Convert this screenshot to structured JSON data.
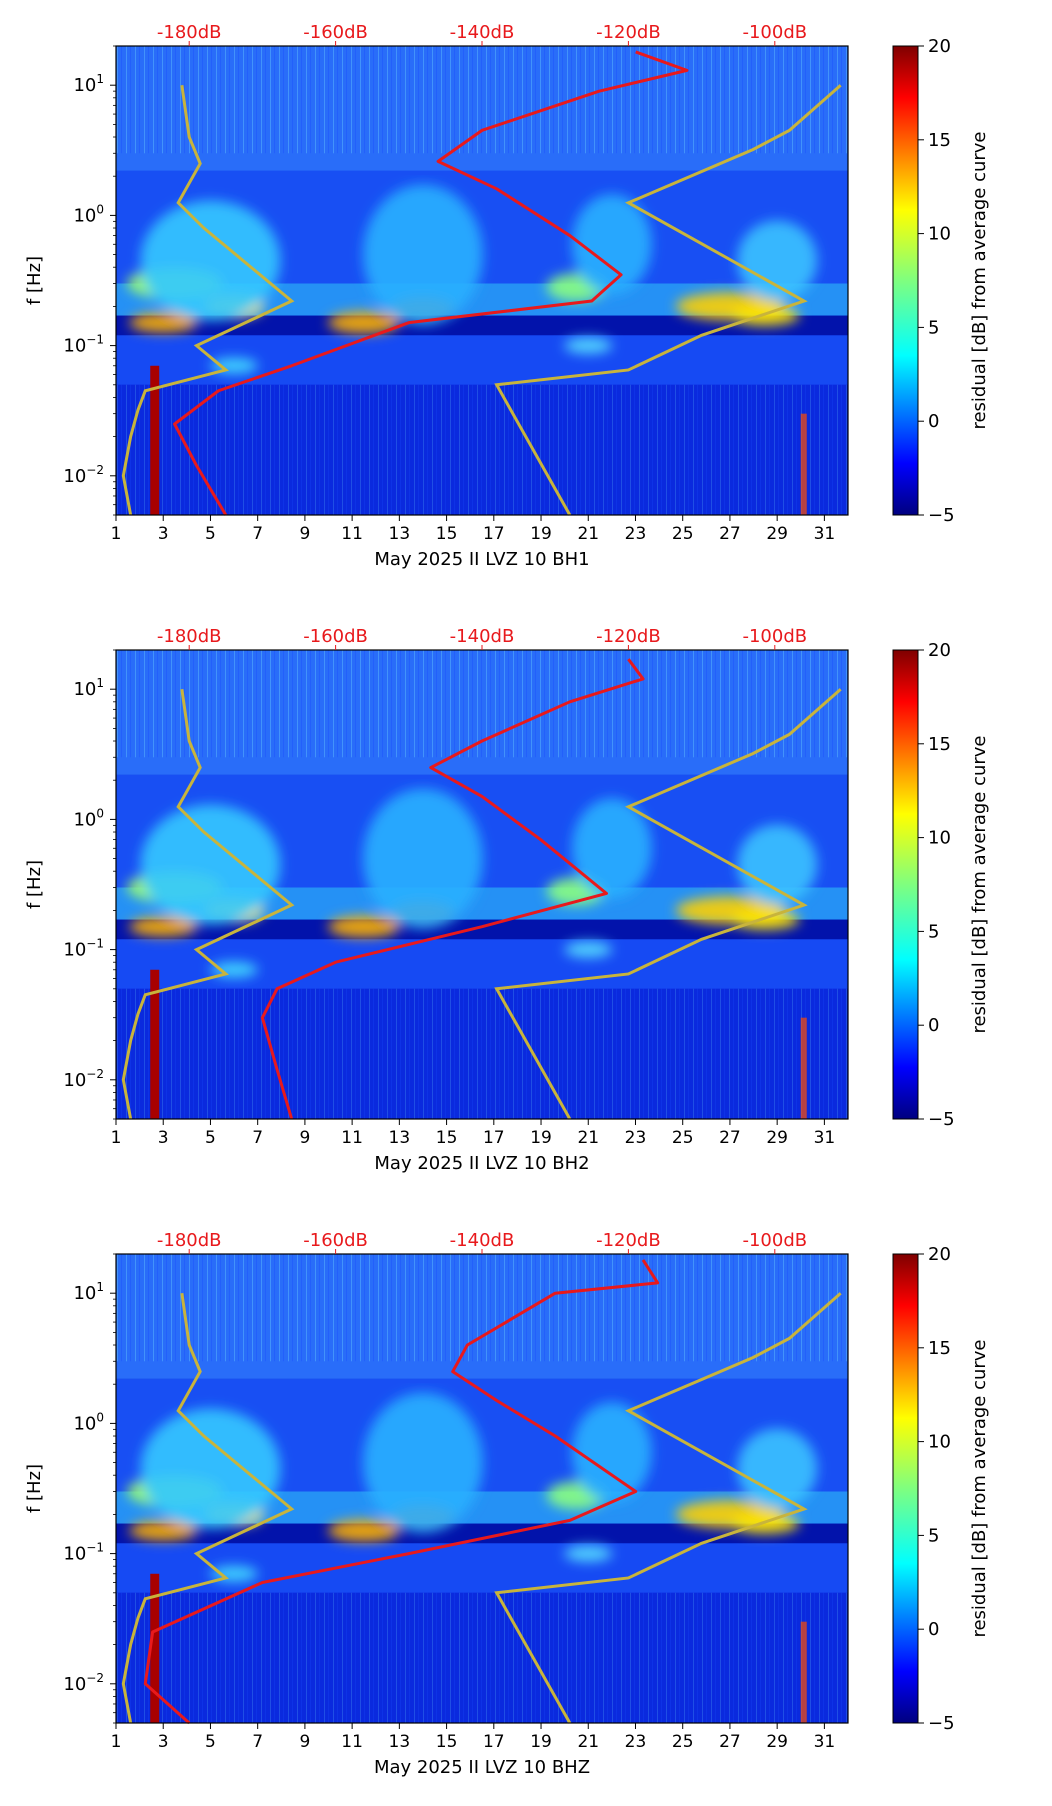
{
  "colors": {
    "psd_curve": "#e8191c",
    "nlnm_nhnm": "#c8b43c",
    "top_axis_text": "#e8191c",
    "axis": "#000000"
  },
  "chart_data": [
    {
      "type": "heatmap",
      "title": "",
      "xlabel": "May 2025 II LVZ 10 BH1",
      "ylabel": "f [Hz]",
      "x_ticks": [
        "1",
        "3",
        "5",
        "7",
        "9",
        "11",
        "13",
        "15",
        "17",
        "19",
        "21",
        "23",
        "25",
        "27",
        "29",
        "31"
      ],
      "x_range": [
        1,
        32
      ],
      "y_range_hz": [
        0.005,
        20
      ],
      "y_scale": "log",
      "y_ticks": [
        {
          "value": 10,
          "base": "10",
          "exp": "1"
        },
        {
          "value": 1,
          "base": "10",
          "exp": "0"
        },
        {
          "value": 0.1,
          "base": "10",
          "exp": "−1"
        },
        {
          "value": 0.01,
          "base": "10",
          "exp": "−2"
        }
      ],
      "top_axis": {
        "labels": [
          "-180dB",
          "-160dB",
          "-140dB",
          "-120dB",
          "-100dB"
        ],
        "values_db": [
          -180,
          -160,
          -140,
          -120,
          -100
        ],
        "range_db": [
          -190,
          -90
        ]
      },
      "colorbar": {
        "label": "residual [dB] from average curve",
        "range": [
          -5,
          20
        ],
        "ticks": [
          "20",
          "15",
          "10",
          "5",
          "0",
          "−5"
        ],
        "tick_values": [
          20,
          15,
          10,
          5,
          0,
          -5
        ]
      },
      "model_curves_db": {
        "low_noise": [
          [
            -181,
            10
          ],
          [
            -180,
            4
          ],
          [
            -178.5,
            2.5
          ],
          [
            -181.5,
            1.25
          ],
          [
            -178,
            0.8
          ],
          [
            -166,
            0.22
          ],
          [
            -179,
            0.1
          ],
          [
            -175,
            0.065
          ],
          [
            -186,
            0.045
          ],
          [
            -187,
            0.032
          ],
          [
            -188,
            0.02
          ],
          [
            -189,
            0.01
          ],
          [
            -188,
            0.005
          ]
        ],
        "high_noise": [
          [
            -91,
            10
          ],
          [
            -98,
            4.5
          ],
          [
            -103,
            3.2
          ],
          [
            -120,
            1.25
          ],
          [
            -96,
            0.22
          ],
          [
            -110,
            0.12
          ],
          [
            -120,
            0.065
          ],
          [
            -138,
            0.05
          ],
          [
            -128,
            0.005
          ]
        ]
      },
      "psd_curve_db": [
        [
          -119,
          18
        ],
        [
          -112,
          13
        ],
        [
          -124,
          9
        ],
        [
          -140,
          4.5
        ],
        [
          -146,
          2.6
        ],
        [
          -138,
          1.6
        ],
        [
          -128,
          0.7
        ],
        [
          -121,
          0.35
        ],
        [
          -125,
          0.22
        ],
        [
          -150,
          0.15
        ],
        [
          -166,
          0.07
        ],
        [
          -176,
          0.045
        ],
        [
          -182,
          0.025
        ],
        [
          -179,
          0.012
        ],
        [
          -175,
          0.005
        ]
      ]
    },
    {
      "type": "heatmap",
      "title": "",
      "xlabel": "May 2025 II LVZ 10 BH2",
      "ylabel": "f [Hz]",
      "x_ticks": [
        "1",
        "3",
        "5",
        "7",
        "9",
        "11",
        "13",
        "15",
        "17",
        "19",
        "21",
        "23",
        "25",
        "27",
        "29",
        "31"
      ],
      "x_range": [
        1,
        32
      ],
      "y_range_hz": [
        0.005,
        20
      ],
      "y_scale": "log",
      "y_ticks": [
        {
          "value": 10,
          "base": "10",
          "exp": "1"
        },
        {
          "value": 1,
          "base": "10",
          "exp": "0"
        },
        {
          "value": 0.1,
          "base": "10",
          "exp": "−1"
        },
        {
          "value": 0.01,
          "base": "10",
          "exp": "−2"
        }
      ],
      "top_axis": {
        "labels": [
          "-180dB",
          "-160dB",
          "-140dB",
          "-120dB",
          "-100dB"
        ],
        "values_db": [
          -180,
          -160,
          -140,
          -120,
          -100
        ],
        "range_db": [
          -190,
          -90
        ]
      },
      "colorbar": {
        "label": "residual [dB] from average curve",
        "range": [
          -5,
          20
        ],
        "ticks": [
          "20",
          "15",
          "10",
          "5",
          "0",
          "−5"
        ],
        "tick_values": [
          20,
          15,
          10,
          5,
          0,
          -5
        ]
      },
      "model_curves_db": {
        "low_noise": [
          [
            -181,
            10
          ],
          [
            -180,
            4
          ],
          [
            -178.5,
            2.5
          ],
          [
            -181.5,
            1.25
          ],
          [
            -178,
            0.8
          ],
          [
            -166,
            0.22
          ],
          [
            -179,
            0.1
          ],
          [
            -175,
            0.065
          ],
          [
            -186,
            0.045
          ],
          [
            -187,
            0.032
          ],
          [
            -188,
            0.02
          ],
          [
            -189,
            0.01
          ],
          [
            -188,
            0.005
          ]
        ],
        "high_noise": [
          [
            -91,
            10
          ],
          [
            -98,
            4.5
          ],
          [
            -103,
            3.2
          ],
          [
            -120,
            1.25
          ],
          [
            -96,
            0.22
          ],
          [
            -110,
            0.12
          ],
          [
            -120,
            0.065
          ],
          [
            -138,
            0.05
          ],
          [
            -128,
            0.005
          ]
        ]
      },
      "psd_curve_db": [
        [
          -120,
          17
        ],
        [
          -118,
          12
        ],
        [
          -128,
          8
        ],
        [
          -140,
          4
        ],
        [
          -147,
          2.5
        ],
        [
          -140,
          1.5
        ],
        [
          -132,
          0.7
        ],
        [
          -123,
          0.27
        ],
        [
          -140,
          0.15
        ],
        [
          -160,
          0.08
        ],
        [
          -168,
          0.05
        ],
        [
          -170,
          0.03
        ],
        [
          -168,
          0.012
        ],
        [
          -166,
          0.005
        ]
      ]
    },
    {
      "type": "heatmap",
      "title": "",
      "xlabel": "May 2025 II LVZ 10 BHZ",
      "ylabel": "f [Hz]",
      "x_ticks": [
        "1",
        "3",
        "5",
        "7",
        "9",
        "11",
        "13",
        "15",
        "17",
        "19",
        "21",
        "23",
        "25",
        "27",
        "29",
        "31"
      ],
      "x_range": [
        1,
        32
      ],
      "y_range_hz": [
        0.005,
        20
      ],
      "y_scale": "log",
      "y_ticks": [
        {
          "value": 10,
          "base": "10",
          "exp": "1"
        },
        {
          "value": 1,
          "base": "10",
          "exp": "0"
        },
        {
          "value": 0.1,
          "base": "10",
          "exp": "−1"
        },
        {
          "value": 0.01,
          "base": "10",
          "exp": "−2"
        }
      ],
      "top_axis": {
        "labels": [
          "-180dB",
          "-160dB",
          "-140dB",
          "-120dB",
          "-100dB"
        ],
        "values_db": [
          -180,
          -160,
          -140,
          -120,
          -100
        ],
        "range_db": [
          -190,
          -90
        ]
      },
      "colorbar": {
        "label": "residual [dB] from average curve",
        "range": [
          -5,
          20
        ],
        "ticks": [
          "20",
          "15",
          "10",
          "5",
          "0",
          "−5"
        ],
        "tick_values": [
          20,
          15,
          10,
          5,
          0,
          -5
        ]
      },
      "model_curves_db": {
        "low_noise": [
          [
            -181,
            10
          ],
          [
            -180,
            4
          ],
          [
            -178.5,
            2.5
          ],
          [
            -181.5,
            1.25
          ],
          [
            -178,
            0.8
          ],
          [
            -166,
            0.22
          ],
          [
            -179,
            0.1
          ],
          [
            -175,
            0.065
          ],
          [
            -186,
            0.045
          ],
          [
            -187,
            0.032
          ],
          [
            -188,
            0.02
          ],
          [
            -189,
            0.01
          ],
          [
            -188,
            0.005
          ]
        ],
        "high_noise": [
          [
            -91,
            10
          ],
          [
            -98,
            4.5
          ],
          [
            -103,
            3.2
          ],
          [
            -120,
            1.25
          ],
          [
            -96,
            0.22
          ],
          [
            -110,
            0.12
          ],
          [
            -120,
            0.065
          ],
          [
            -138,
            0.05
          ],
          [
            -128,
            0.005
          ]
        ]
      },
      "psd_curve_db": [
        [
          -118,
          18
        ],
        [
          -116,
          12
        ],
        [
          -130,
          10
        ],
        [
          -142,
          4
        ],
        [
          -144,
          2.5
        ],
        [
          -138,
          1.5
        ],
        [
          -130,
          0.8
        ],
        [
          -119,
          0.3
        ],
        [
          -128,
          0.18
        ],
        [
          -150,
          0.1
        ],
        [
          -170,
          0.06
        ],
        [
          -185,
          0.025
        ],
        [
          -186,
          0.01
        ],
        [
          -180,
          0.005
        ]
      ]
    }
  ]
}
